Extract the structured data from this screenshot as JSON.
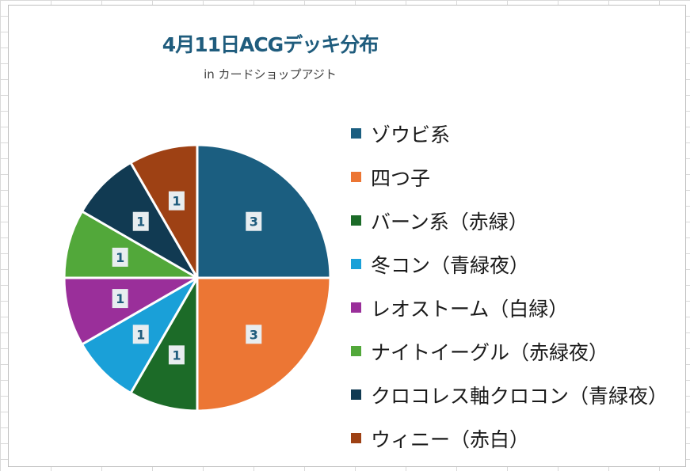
{
  "chart_data": {
    "type": "pie",
    "title": "4月11日ACGデッキ分布",
    "subtitle": "in カードショップアジト",
    "categories": [
      "ゾウビ系",
      "四つ子",
      "バーン系（赤緑）",
      "冬コン（青緑夜）",
      "レオストーム（白緑）",
      "ナイトイーグル（赤緑夜）",
      "クロコレス軸クロコン（青緑夜）",
      "ウィニー（赤白）"
    ],
    "values": [
      3,
      3,
      1,
      1,
      1,
      1,
      1,
      1
    ],
    "colors": [
      "#1b5e80",
      "#ec7634",
      "#1c6b28",
      "#1aa0d8",
      "#9a2f9a",
      "#52a83a",
      "#113a52",
      "#9e4114"
    ],
    "legend_position": "right",
    "data_labels": true
  }
}
